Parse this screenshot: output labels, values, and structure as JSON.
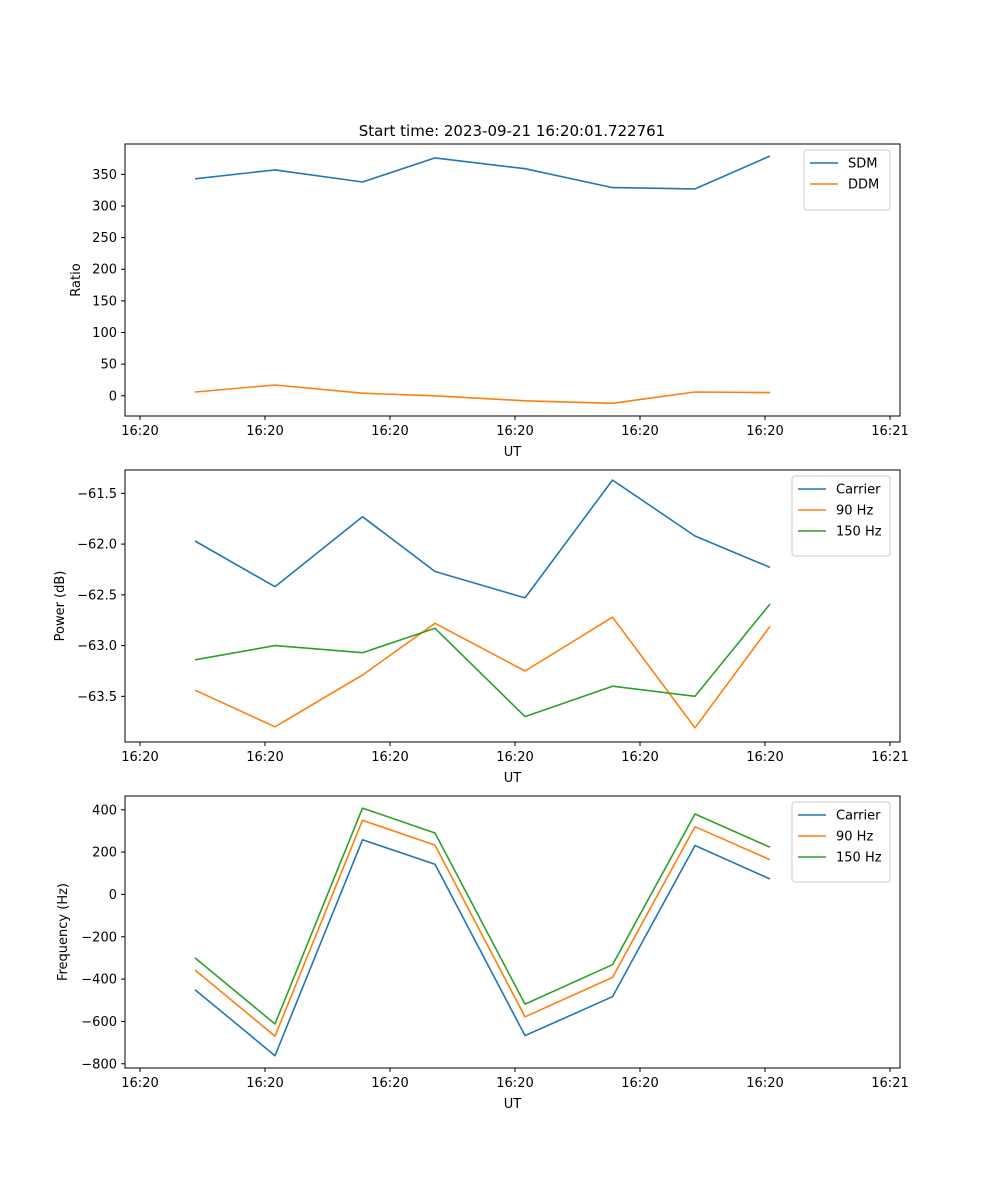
{
  "figure_title": "Start time: 2023-09-21 16:20:01.722761",
  "colors": {
    "blue": "#1f77b4",
    "orange": "#ff7f0e",
    "green": "#2ca02c"
  },
  "chart_data": [
    {
      "type": "line",
      "title": "Start time: 2023-09-21 16:20:01.722761",
      "xlabel": "UT",
      "ylabel": "Ratio",
      "x": [
        0.22,
        0.54,
        0.89,
        1.18,
        1.54,
        1.89,
        2.22,
        2.52
      ],
      "xlim": [
        -0.06,
        3.04
      ],
      "xticks": [
        0,
        0.5,
        1,
        1.5,
        2,
        2.5,
        3
      ],
      "xtick_labels": [
        "16:20",
        "16:20",
        "16:20",
        "16:20",
        "16:20",
        "16:20",
        "16:21"
      ],
      "ylim": [
        -32,
        398
      ],
      "yticks": [
        0,
        50,
        100,
        150,
        200,
        250,
        300,
        350
      ],
      "ytick_labels": [
        "0",
        "50",
        "100",
        "150",
        "200",
        "250",
        "300",
        "350"
      ],
      "legend": "top-right",
      "series": [
        {
          "name": "SDM",
          "color": "#1f77b4",
          "values": [
            343,
            357,
            338,
            376,
            359,
            329,
            327,
            379
          ]
        },
        {
          "name": "DDM",
          "color": "#ff7f0e",
          "values": [
            6,
            17,
            4,
            0,
            -8,
            -12,
            6,
            5
          ]
        }
      ]
    },
    {
      "type": "line",
      "xlabel": "UT",
      "ylabel": "Power (dB)",
      "x": [
        0.22,
        0.54,
        0.89,
        1.18,
        1.54,
        1.89,
        2.22,
        2.52
      ],
      "xlim": [
        -0.06,
        3.04
      ],
      "xticks": [
        0,
        0.5,
        1,
        1.5,
        2,
        2.5,
        3
      ],
      "xtick_labels": [
        "16:20",
        "16:20",
        "16:20",
        "16:20",
        "16:20",
        "16:20",
        "16:21"
      ],
      "ylim": [
        -63.95,
        -61.27
      ],
      "yticks": [
        -63.5,
        -63.0,
        -62.5,
        -62.0,
        -61.5
      ],
      "ytick_labels": [
        "−63.5",
        "−63.0",
        "−62.5",
        "−62.0",
        "−61.5"
      ],
      "legend": "top-right",
      "series": [
        {
          "name": "Carrier",
          "color": "#1f77b4",
          "values": [
            -61.97,
            -62.42,
            -61.73,
            -62.27,
            -62.53,
            -61.37,
            -61.92,
            -62.23
          ]
        },
        {
          "name": "90 Hz",
          "color": "#ff7f0e",
          "values": [
            -63.44,
            -63.8,
            -63.29,
            -62.78,
            -63.25,
            -62.72,
            -63.81,
            -62.81
          ]
        },
        {
          "name": "150 Hz",
          "color": "#2ca02c",
          "values": [
            -63.14,
            -63.0,
            -63.07,
            -62.83,
            -63.7,
            -63.4,
            -63.5,
            -62.59
          ]
        }
      ]
    },
    {
      "type": "line",
      "xlabel": "UT",
      "ylabel": "Frequency (Hz)",
      "x": [
        0.22,
        0.54,
        0.89,
        1.18,
        1.54,
        1.89,
        2.22,
        2.52
      ],
      "xlim": [
        -0.06,
        3.04
      ],
      "xticks": [
        0,
        0.5,
        1,
        1.5,
        2,
        2.5,
        3
      ],
      "xtick_labels": [
        "16:20",
        "16:20",
        "16:20",
        "16:20",
        "16:20",
        "16:20",
        "16:21"
      ],
      "ylim": [
        -820,
        465
      ],
      "yticks": [
        -800,
        -600,
        -400,
        -200,
        0,
        200,
        400
      ],
      "ytick_labels": [
        "−800",
        "−600",
        "−400",
        "−200",
        "0",
        "200",
        "400"
      ],
      "legend": "top-right",
      "series": [
        {
          "name": "Carrier",
          "color": "#1f77b4",
          "values": [
            -450,
            -762,
            258,
            143,
            -667,
            -483,
            231,
            73
          ]
        },
        {
          "name": "90 Hz",
          "color": "#ff7f0e",
          "values": [
            -357,
            -670,
            350,
            233,
            -578,
            -392,
            320,
            164
          ]
        },
        {
          "name": "150 Hz",
          "color": "#2ca02c",
          "values": [
            -300,
            -612,
            408,
            290,
            -518,
            -332,
            380,
            223
          ]
        }
      ]
    }
  ]
}
